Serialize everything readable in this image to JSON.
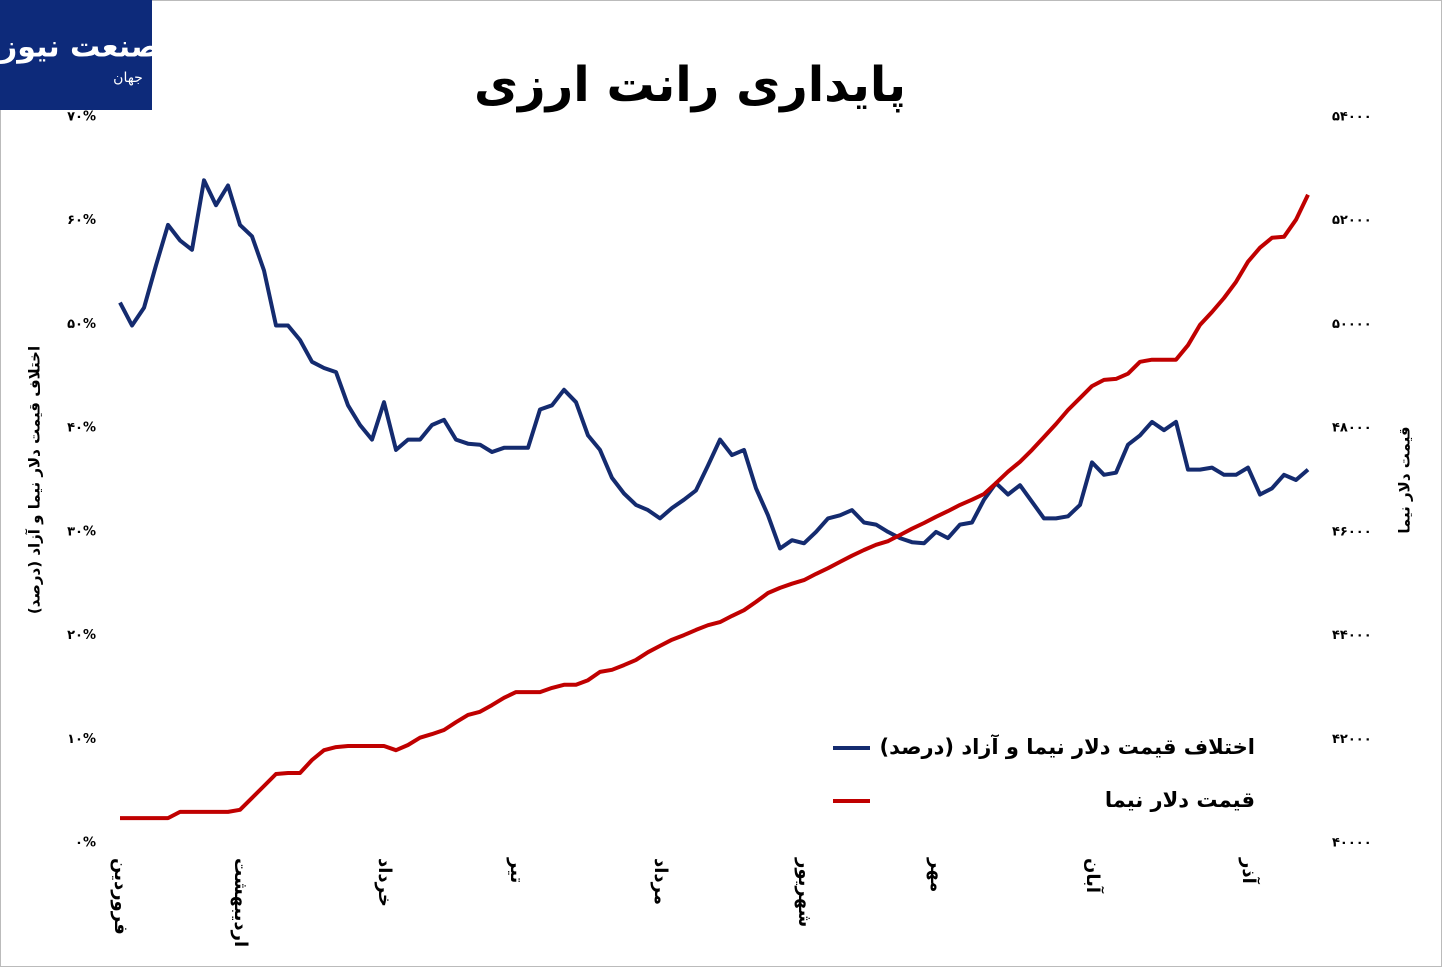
{
  "logo": {
    "main": "صنعت نیوز",
    "sub": "جهان"
  },
  "chart_data": {
    "type": "line",
    "title": "پایداری رانت ارزی",
    "y_label": "اختلاف قیمت دلار نیما و آزاد (درصد)",
    "y2_label": "قیمت دلار نیما",
    "categories": [
      "فروردین",
      null,
      null,
      null,
      null,
      null,
      null,
      null,
      null,
      null,
      "اردیبهشت",
      null,
      null,
      null,
      null,
      null,
      null,
      null,
      null,
      null,
      null,
      null,
      "خرداد",
      null,
      null,
      null,
      null,
      null,
      null,
      null,
      null,
      null,
      null,
      "تیر",
      null,
      null,
      null,
      null,
      null,
      null,
      null,
      null,
      null,
      null,
      null,
      "مرداد",
      null,
      null,
      null,
      null,
      null,
      null,
      null,
      null,
      null,
      null,
      null,
      "شهریور",
      null,
      null,
      null,
      null,
      null,
      null,
      null,
      null,
      null,
      null,
      "مهر",
      null,
      null,
      null,
      null,
      null,
      null,
      null,
      null,
      null,
      null,
      null,
      null,
      "آبان",
      null,
      null,
      null,
      null,
      null,
      null,
      null,
      null,
      null,
      null,
      null,
      null,
      "آذر",
      null,
      null,
      null,
      null,
      null
    ],
    "ylim": [
      0,
      70
    ],
    "yticks": [
      {
        "value": 0,
        "label": "۰%"
      },
      {
        "value": 10,
        "label": "۱۰%"
      },
      {
        "value": 20,
        "label": "۲۰%"
      },
      {
        "value": 30,
        "label": "۳۰%"
      },
      {
        "value": 40,
        "label": "۴۰%"
      },
      {
        "value": 50,
        "label": "۵۰%"
      },
      {
        "value": 60,
        "label": "۶۰%"
      },
      {
        "value": 70,
        "label": "۷۰%"
      }
    ],
    "y2lim": [
      40000,
      54000
    ],
    "y2ticks": [
      {
        "value": 40000,
        "label": "۴۰۰۰۰"
      },
      {
        "value": 42000,
        "label": "۴۲۰۰۰"
      },
      {
        "value": 44000,
        "label": "۴۴۰۰۰"
      },
      {
        "value": 46000,
        "label": "۴۶۰۰۰"
      },
      {
        "value": 48000,
        "label": "۴۸۰۰۰"
      },
      {
        "value": 50000,
        "label": "۵۰۰۰۰"
      },
      {
        "value": 52000,
        "label": "۵۲۰۰۰"
      },
      {
        "value": 54000,
        "label": "۵۴۰۰۰"
      }
    ],
    "series": [
      {
        "name": "اختلاف قیمت دلار نیما و آزاد (درصد)",
        "color": "#142b6f",
        "values": [
          52.1,
          49.9,
          51.6,
          55.7,
          59.6,
          58.1,
          57.2,
          63.9,
          61.5,
          63.4,
          59.6,
          58.5,
          55.2,
          49.9,
          49.9,
          48.5,
          46.4,
          45.8,
          45.4,
          42.2,
          40.3,
          38.9,
          42.5,
          37.9,
          38.9,
          38.9,
          40.3,
          40.8,
          38.9,
          38.5,
          38.4,
          37.7,
          38.1,
          38.1,
          38.1,
          41.8,
          42.2,
          43.7,
          42.5,
          39.3,
          37.9,
          35.2,
          33.7,
          32.6,
          32.1,
          31.3,
          32.3,
          33.1,
          34.0,
          36.4,
          38.9,
          37.4,
          37.9,
          34.2,
          31.6,
          28.4,
          29.2,
          28.9,
          30.0,
          31.3,
          31.6,
          32.1,
          30.9,
          30.7,
          30.0,
          29.4,
          29.0,
          28.9,
          30.0,
          29.4,
          30.7,
          30.9,
          33.1,
          34.7,
          33.6,
          34.5,
          32.9,
          31.3,
          31.3,
          31.5,
          32.6,
          36.7,
          35.5,
          35.7,
          38.4,
          39.3,
          40.6,
          39.8,
          40.6,
          36.0,
          36.0,
          36.2,
          35.5,
          35.5,
          36.2,
          33.6,
          34.2,
          35.5,
          35.0,
          36.0
        ]
      },
      {
        "name": "قیمت دلار نیما",
        "color": "#c00000",
        "axis": "y2",
        "values": [
          40480,
          40480,
          40480,
          40480,
          40480,
          40600,
          40600,
          40600,
          40600,
          40600,
          40640,
          40870,
          41100,
          41330,
          41350,
          41350,
          41600,
          41790,
          41850,
          41870,
          41870,
          41870,
          41870,
          41790,
          41890,
          42030,
          42100,
          42180,
          42330,
          42470,
          42530,
          42660,
          42800,
          42910,
          42910,
          42910,
          42990,
          43050,
          43050,
          43140,
          43300,
          43340,
          43430,
          43530,
          43680,
          43800,
          43920,
          44010,
          44110,
          44200,
          44260,
          44380,
          44490,
          44650,
          44820,
          44920,
          45000,
          45070,
          45190,
          45300,
          45420,
          45540,
          45650,
          45750,
          45820,
          45940,
          46060,
          46170,
          46290,
          46400,
          46520,
          46620,
          46730,
          46940,
          47160,
          47350,
          47580,
          47830,
          48080,
          48350,
          48580,
          48810,
          48930,
          48950,
          49050,
          49280,
          49320,
          49320,
          49320,
          49600,
          49990,
          50240,
          50510,
          50820,
          51210,
          51480,
          51670,
          51690,
          52020,
          52500
        ]
      }
    ]
  }
}
